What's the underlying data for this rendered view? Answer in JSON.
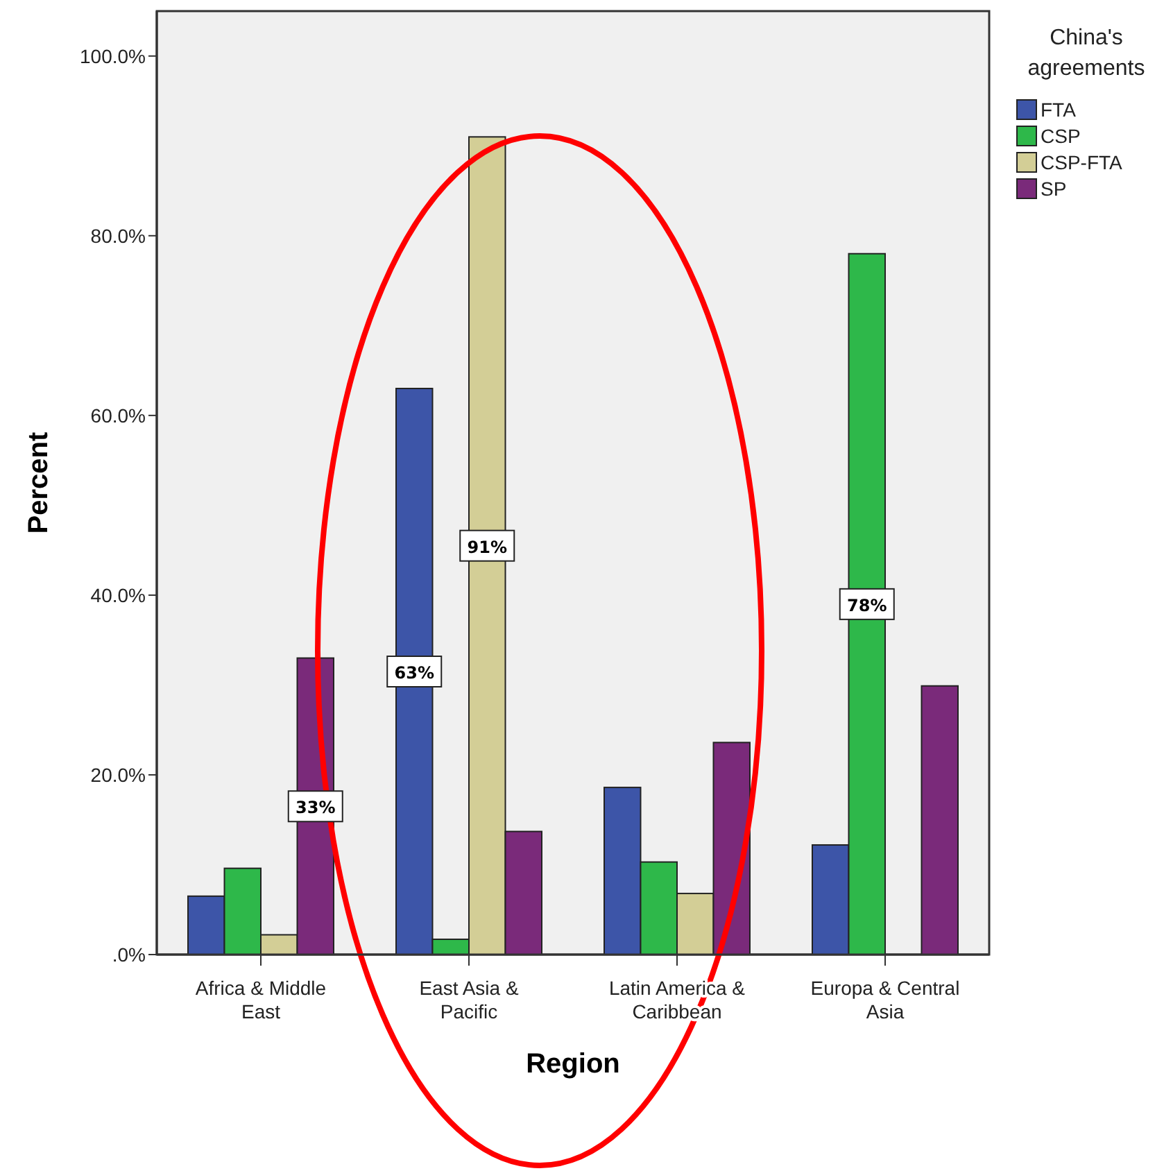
{
  "chart_data": {
    "type": "bar",
    "xlabel": "Region",
    "ylabel": "Percent",
    "legend_title": "China's agreements",
    "legend": "right",
    "grid": false,
    "categories": [
      "Africa & Middle East",
      "East Asia & Pacific",
      "Latin America & Caribbean",
      "Europa & Central Asia"
    ],
    "ylim": [
      0,
      105
    ],
    "yticks": [
      {
        "value": 0,
        "label": ".0%"
      },
      {
        "value": 20,
        "label": "20.0%"
      },
      {
        "value": 40,
        "label": "40.0%"
      },
      {
        "value": 60,
        "label": "60.0%"
      },
      {
        "value": 80,
        "label": "80.0%"
      },
      {
        "value": 100,
        "label": "100.0%"
      }
    ],
    "series": [
      {
        "name": "FTA",
        "color": "#3d55a8",
        "values": [
          6.5,
          63,
          18.6,
          12.2
        ],
        "value_labels": [
          null,
          "63%",
          null,
          null
        ]
      },
      {
        "name": "CSP",
        "color": "#2eb84a",
        "values": [
          9.6,
          1.7,
          10.3,
          78
        ],
        "value_labels": [
          null,
          null,
          null,
          "78%"
        ]
      },
      {
        "name": "CSP-FTA",
        "color": "#d3ce96",
        "values": [
          2.2,
          91,
          6.8,
          0
        ],
        "value_labels": [
          null,
          "91%",
          null,
          null
        ]
      },
      {
        "name": "SP",
        "color": "#7a2a7a",
        "values": [
          33,
          13.7,
          23.6,
          29.9
        ],
        "value_labels": [
          "33%",
          null,
          null,
          null
        ]
      }
    ]
  }
}
